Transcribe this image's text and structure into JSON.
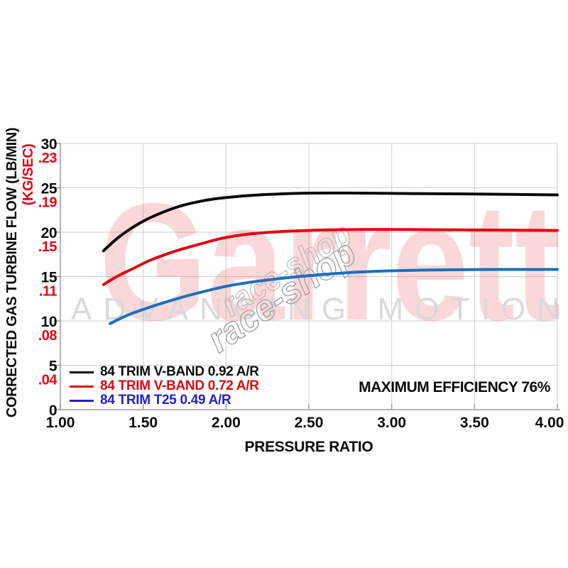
{
  "watermarks": {
    "brand": "Garrett",
    "tagline": "ADVANCING MOTION",
    "stamp": "race-shop"
  },
  "colors": {
    "grid": "#cfcfcf",
    "axis": "#9a9a9a",
    "tick_label": "#0a0a0a",
    "red": "#e30613",
    "brand_watermark": "rgba(227,6,19,0.16)",
    "tagline_watermark": "#d9d9d9",
    "stamp_light": "#b8b8b8",
    "stamp_dark": "#9c9c9c"
  },
  "chart_data": {
    "type": "line",
    "title": "",
    "xlabel": "PRESSURE RATIO",
    "ylabel_primary": "CORRECTED GAS TURBINE FLOW (LB/MIN)",
    "ylabel_secondary": "(KG/SEC)",
    "annotation": "MAXIMUM EFFICIENCY 76%",
    "grid": true,
    "legend_position": "bottom-left-inside",
    "xlim": [
      1.0,
      4.0
    ],
    "ylim": [
      0,
      30
    ],
    "x_ticks": [
      1.0,
      1.5,
      2.0,
      2.5,
      3.0,
      3.5,
      4.0
    ],
    "x_tick_labels": [
      "1.00",
      "1.50",
      "2.00",
      "2.50",
      "3.00",
      "3.50",
      "4.00"
    ],
    "y_ticks": [
      0,
      5,
      10,
      15,
      20,
      25,
      30
    ],
    "y_tick_labels_lb_min": [
      "0",
      "5",
      "10",
      "15",
      "20",
      "25",
      "30"
    ],
    "y_tick_labels_kg_sec": {
      "5": ".04",
      "10": ".08",
      "15": ".11",
      "20": ".15",
      "25": ".19",
      "30": ".23"
    },
    "series": [
      {
        "name": "84 TRIM V-BAND 0.92 A/R",
        "color": "#0a0a0a",
        "points": [
          [
            1.26,
            17.9
          ],
          [
            1.35,
            19.4
          ],
          [
            1.45,
            20.7
          ],
          [
            1.55,
            21.7
          ],
          [
            1.7,
            22.8
          ],
          [
            1.85,
            23.5
          ],
          [
            2.0,
            23.9
          ],
          [
            2.2,
            24.2
          ],
          [
            2.5,
            24.4
          ],
          [
            2.8,
            24.4
          ],
          [
            3.1,
            24.35
          ],
          [
            3.5,
            24.3
          ],
          [
            4.0,
            24.2
          ]
        ]
      },
      {
        "name": "84 TRIM V-BAND 0.72 A/R",
        "color": "#e30613",
        "points": [
          [
            1.26,
            14.1
          ],
          [
            1.35,
            15.1
          ],
          [
            1.45,
            16.0
          ],
          [
            1.55,
            16.9
          ],
          [
            1.7,
            17.9
          ],
          [
            1.85,
            18.7
          ],
          [
            2.0,
            19.4
          ],
          [
            2.2,
            19.9
          ],
          [
            2.5,
            20.2
          ],
          [
            2.8,
            20.3
          ],
          [
            3.1,
            20.3
          ],
          [
            3.5,
            20.25
          ],
          [
            4.0,
            20.2
          ]
        ]
      },
      {
        "name": "84 TRIM T25 0.49 A/R",
        "color": "#1b6fbd",
        "legend_color": "#2421c2",
        "points": [
          [
            1.3,
            9.7
          ],
          [
            1.4,
            10.6
          ],
          [
            1.5,
            11.3
          ],
          [
            1.65,
            12.2
          ],
          [
            1.8,
            13.0
          ],
          [
            2.0,
            13.9
          ],
          [
            2.2,
            14.5
          ],
          [
            2.5,
            15.1
          ],
          [
            2.75,
            15.45
          ],
          [
            3.0,
            15.65
          ],
          [
            3.3,
            15.75
          ],
          [
            3.6,
            15.8
          ],
          [
            4.0,
            15.8
          ]
        ]
      }
    ]
  }
}
